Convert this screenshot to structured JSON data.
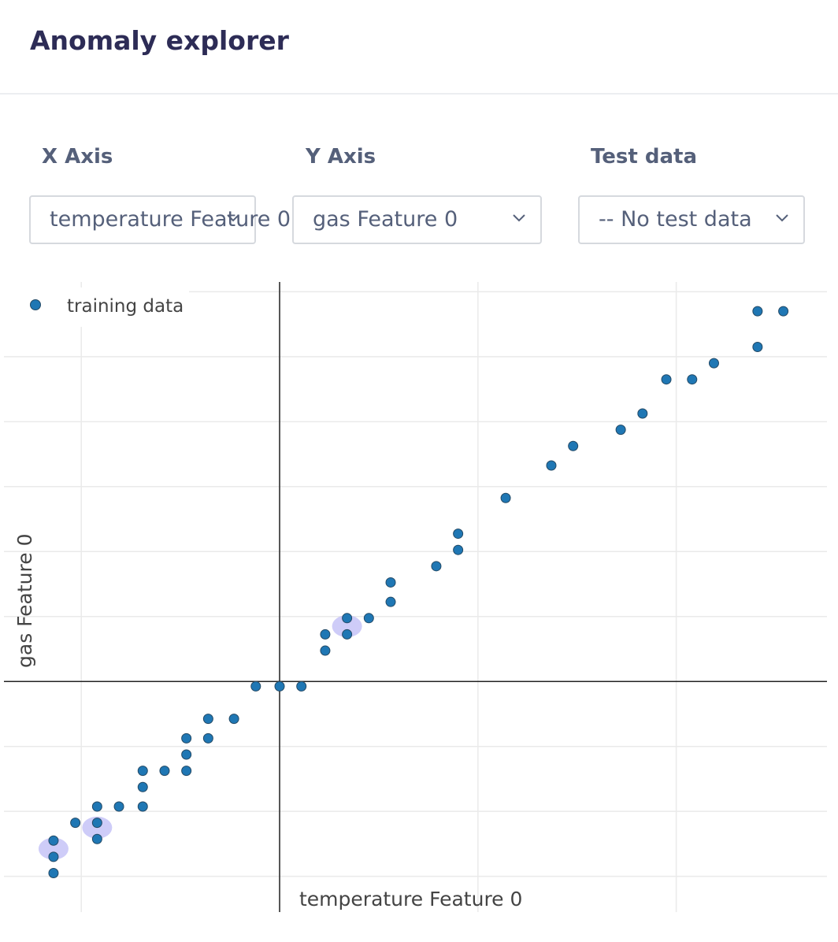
{
  "header": {
    "title": "Anomaly explorer"
  },
  "controls": {
    "x_axis": {
      "label": "X Axis",
      "value": "temperature Feature 0"
    },
    "y_axis": {
      "label": "Y Axis",
      "value": "gas Feature 0"
    },
    "test_data": {
      "label": "Test data",
      "value": "-- No test data"
    }
  },
  "chart_data": {
    "type": "scatter",
    "xlabel": "temperature Feature 0",
    "ylabel": "gas Feature 0",
    "legend": {
      "position": "top-left",
      "entries": [
        "training data"
      ]
    },
    "series": [
      {
        "name": "training data",
        "color": "#1f77b4",
        "points": [
          [
            -1.14,
            -1.18
          ],
          [
            -1.14,
            -1.08
          ],
          [
            -1.14,
            -0.98
          ],
          [
            -1.03,
            -0.87
          ],
          [
            -0.92,
            -0.97
          ],
          [
            -0.92,
            -0.87
          ],
          [
            -0.92,
            -0.77
          ],
          [
            -0.81,
            -0.77
          ],
          [
            -0.69,
            -0.77
          ],
          [
            -0.69,
            -0.65
          ],
          [
            -0.69,
            -0.55
          ],
          [
            -0.58,
            -0.55
          ],
          [
            -0.47,
            -0.55
          ],
          [
            -0.47,
            -0.45
          ],
          [
            -0.47,
            -0.35
          ],
          [
            -0.36,
            -0.35
          ],
          [
            -0.36,
            -0.23
          ],
          [
            -0.23,
            -0.23
          ],
          [
            -0.12,
            -0.03
          ],
          [
            0.0,
            -0.03
          ],
          [
            0.11,
            -0.03
          ],
          [
            0.23,
            0.19
          ],
          [
            0.23,
            0.29
          ],
          [
            0.34,
            0.29
          ],
          [
            0.34,
            0.39
          ],
          [
            0.45,
            0.39
          ],
          [
            0.56,
            0.49
          ],
          [
            0.56,
            0.61
          ],
          [
            0.79,
            0.71
          ],
          [
            0.9,
            0.81
          ],
          [
            0.9,
            0.91
          ],
          [
            1.14,
            1.13
          ],
          [
            1.37,
            1.33
          ],
          [
            1.48,
            1.45
          ],
          [
            1.72,
            1.55
          ],
          [
            1.83,
            1.65
          ],
          [
            1.95,
            1.86
          ],
          [
            2.08,
            1.86
          ],
          [
            2.19,
            1.96
          ],
          [
            2.41,
            2.06
          ],
          [
            2.41,
            2.28
          ],
          [
            2.54,
            2.28
          ]
        ]
      }
    ],
    "highlights": [
      {
        "x": -1.14,
        "y": -1.03
      },
      {
        "x": -0.92,
        "y": -0.9
      },
      {
        "x": 0.34,
        "y": 0.34
      }
    ],
    "xlim": [
      -1.39,
      2.76
    ],
    "ylim": [
      -1.42,
      2.46
    ],
    "grid": true,
    "highlight_color": "#c9c6f7"
  }
}
